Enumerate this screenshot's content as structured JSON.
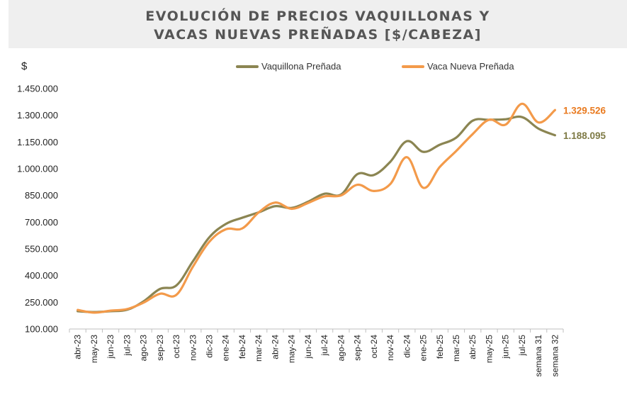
{
  "chart_data": {
    "type": "line",
    "title": [
      "EVOLUCIÓN DE PRECIOS VAQUILLONAS Y",
      "VACAS NUEVAS PREÑADAS [$/CABEZA]"
    ],
    "ylabel": "$",
    "ylim": [
      100000,
      1450000
    ],
    "yticks": [
      100000,
      250000,
      400000,
      550000,
      700000,
      850000,
      1000000,
      1150000,
      1300000,
      1450000
    ],
    "ytick_labels": [
      "100.000",
      "250.000",
      "400.000",
      "550.000",
      "700.000",
      "850.000",
      "1.000.000",
      "1.150.000",
      "1.300.000",
      "1.450.000"
    ],
    "categories": [
      "abr-23",
      "may-23",
      "jun-23",
      "jul-23",
      "ago-23",
      "sep-23",
      "oct-23",
      "nov-23",
      "dic-23",
      "ene-24",
      "feb-24",
      "mar-24",
      "abr-24",
      "may-24",
      "jun-24",
      "jul-24",
      "ago-24",
      "sep-24",
      "oct-24",
      "nov-24",
      "dic-24",
      "ene-25",
      "feb-25",
      "mar-25",
      "abr-25",
      "may-25",
      "jun-25",
      "jul-25",
      "semana 31",
      "semana 32"
    ],
    "series": [
      {
        "name": "Vaquillona Preñada",
        "color": "#8b8552",
        "values": [
          200000,
          195000,
          200000,
          208000,
          255000,
          325000,
          345000,
          480000,
          615000,
          690000,
          725000,
          755000,
          790000,
          780000,
          815000,
          860000,
          855000,
          970000,
          965000,
          1040000,
          1155000,
          1095000,
          1135000,
          1175000,
          1270000,
          1275000,
          1278000,
          1290000,
          1225000,
          1188095
        ],
        "end_label": "1.188.095"
      },
      {
        "name": "Vaca Nueva Preñada",
        "color": "#f39a4a",
        "values": [
          207000,
          192000,
          203000,
          212000,
          248000,
          298000,
          292000,
          450000,
          590000,
          660000,
          665000,
          755000,
          810000,
          775000,
          808000,
          845000,
          850000,
          910000,
          875000,
          915000,
          1065000,
          893000,
          1010000,
          1100000,
          1195000,
          1275000,
          1248000,
          1365000,
          1260000,
          1329526
        ],
        "end_label": "1.329.526"
      }
    ],
    "legend_position": "top",
    "grid": false,
    "end_label_colors": [
      "#7e7a45",
      "#e97a1f"
    ]
  }
}
